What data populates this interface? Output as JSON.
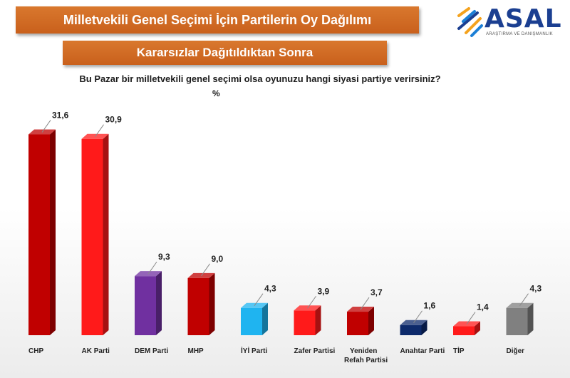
{
  "header": {
    "title": "Milletvekili Genel Seçimi İçin Partilerin Oy Dağılımı",
    "subtitle": "Kararsızlar Dağıtıldıktan Sonra",
    "question": "Bu Pazar bir milletvekili genel seçimi olsa oyunuzu hangi siyasi partiye verirsiniz?",
    "unit": "%"
  },
  "logo": {
    "name": "ASAL",
    "tagline": "ARAŞTIRMA VE DANIŞMANLIK",
    "colors": [
      "#f4a21d",
      "#1b7fd6",
      "#1b3f91"
    ]
  },
  "chart_data": {
    "type": "bar",
    "categories": [
      "CHP",
      "AK Parti",
      "DEM Parti",
      "MHP",
      "İYİ Parti",
      "Zafer Partisi",
      "Yeniden Refah Partisi",
      "Anahtar Parti",
      "TİP",
      "Diğer"
    ],
    "values": [
      31.6,
      30.9,
      9.3,
      9.0,
      4.3,
      3.9,
      3.7,
      1.6,
      1.4,
      4.3
    ],
    "value_labels": [
      "31,6",
      "30,9",
      "9,3",
      "9,0",
      "4,3",
      "3,9",
      "3,7",
      "1,6",
      "1,4",
      "4,3"
    ],
    "colors": [
      "#c00000",
      "#ff1a1a",
      "#7030a0",
      "#c00000",
      "#1fb4f0",
      "#ff1a1a",
      "#c00000",
      "#0d2a6b",
      "#ff1a1a",
      "#808080"
    ],
    "ylim": [
      0,
      33
    ],
    "grid": false,
    "legend": "none"
  }
}
